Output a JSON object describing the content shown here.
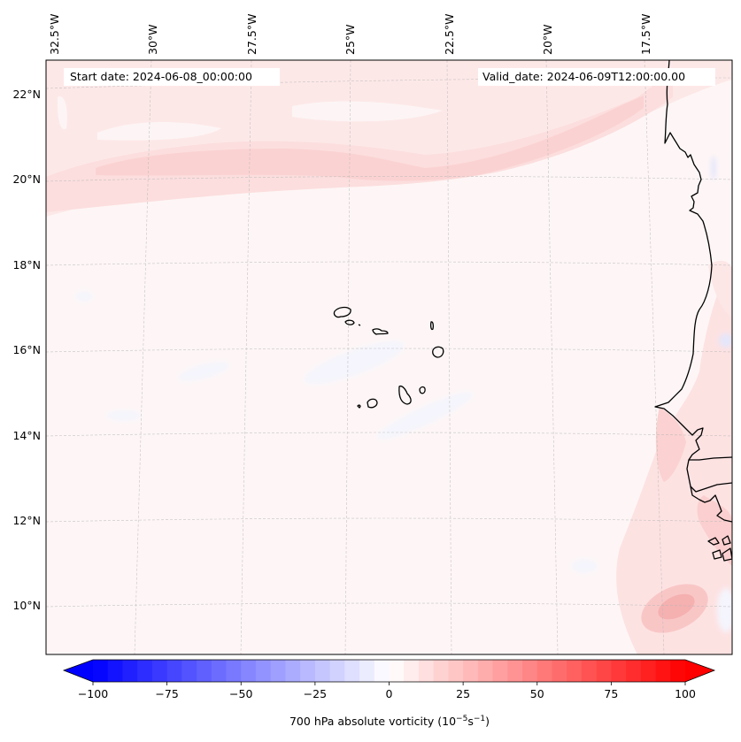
{
  "chart_data": {
    "type": "heatmap",
    "title": "",
    "variable": "700 hPa absolute vorticity",
    "units_label": "700 hPa absolute vorticity (10^-5 s^-1)",
    "annotations": {
      "start_date": "Start date: 2024-06-08_00:00:00",
      "valid_date": "Valid_date: 2024-06-09T12:00:00.00"
    },
    "lon_ticks": [
      "32.5°W",
      "30°W",
      "27.5°W",
      "25°W",
      "22.5°W",
      "20°W",
      "17.5°W"
    ],
    "lon_values": [
      -32.5,
      -30,
      -27.5,
      -25,
      -22.5,
      -20,
      -17.5
    ],
    "lat_ticks": [
      "22°N",
      "20°N",
      "18°N",
      "16°N",
      "14°N",
      "12°N",
      "10°N"
    ],
    "lat_values": [
      22,
      20,
      18,
      16,
      14,
      12,
      10
    ],
    "extent": {
      "lon": [
        -32.5,
        -15.3
      ],
      "lat": [
        8.9,
        22.8
      ]
    },
    "grid": true,
    "colorbar": {
      "orientation": "horizontal",
      "placement": "bottom",
      "cmap": "bwr",
      "vmin": -100,
      "vmax": 100,
      "step": 5,
      "extend": "both",
      "ticks": [
        -100,
        -75,
        -50,
        -25,
        0,
        25,
        50,
        75,
        100
      ],
      "tick_labels": [
        "−100",
        "−75",
        "−50",
        "−25",
        "0",
        "25",
        "50",
        "75",
        "100"
      ],
      "label_main": "700 hPa absolute vorticity (10",
      "label_exp1": "−5",
      "label_mid": "s",
      "label_exp2": "−1",
      "label_end": ")"
    },
    "features": [
      {
        "name": "subtropical positive vorticity band",
        "lat_approx": 20.2,
        "lon_range": [
          -32.5,
          -15.8
        ],
        "value_approx": 15
      },
      {
        "name": "coastal positive vorticity (West Africa)",
        "lat_range": [
          9.5,
          15
        ],
        "lon_approx": -16.5,
        "value_approx": 15
      },
      {
        "name": "positive vorticity maximum",
        "lat_approx": 9.8,
        "lon_approx": -17.3,
        "value_approx": 25
      },
      {
        "name": "weak negative vorticity patches",
        "region": "central tropical Atlantic",
        "value_approx": -5
      }
    ],
    "regions": [
      "Cape Verde Islands",
      "West African coast (Mauritania, Senegal, Gambia, Guinea-Bissau, Guinea)"
    ]
  }
}
